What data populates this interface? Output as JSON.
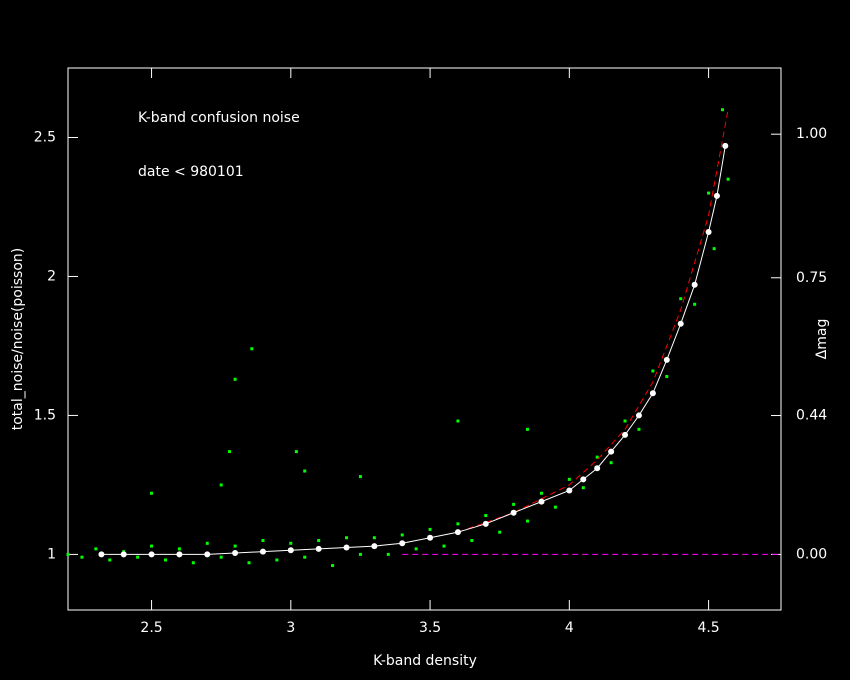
{
  "chart_data": {
    "type": "scatter",
    "title": "K-band confusion noise",
    "annotations": [
      "date < 980101"
    ],
    "x_label": "K-band density",
    "y_label": "total_noise/noise(poisson)",
    "y2_label": "Δmag",
    "xlim": [
      2.2,
      4.76
    ],
    "ylim": [
      0.8,
      2.75
    ],
    "xticks": [
      2.5,
      3,
      3.5,
      4,
      4.5
    ],
    "yticks": [
      1,
      1.5,
      2,
      2.5
    ],
    "y2_scale": "magnitude",
    "y2ticks": [
      {
        "value": 0,
        "label": "0.00"
      },
      {
        "value": 0.44,
        "label": "0.44"
      },
      {
        "value": 0.75,
        "label": "0.75"
      },
      {
        "value": 1,
        "label": "1.00"
      }
    ],
    "series": [
      {
        "mode": "points",
        "color": "#00ff00",
        "x": [
          2.2,
          2.25,
          2.3,
          2.35,
          2.4,
          2.45,
          2.5,
          2.55,
          2.6,
          2.65,
          2.7,
          2.75,
          2.8,
          2.85,
          2.9,
          2.95,
          3.0,
          3.05,
          3.1,
          3.15,
          3.2,
          3.25,
          3.3,
          3.35,
          3.4,
          3.45,
          3.5,
          3.55,
          3.6,
          3.65,
          3.7,
          3.75,
          3.8,
          3.85,
          3.9,
          3.95,
          4.0,
          4.05,
          4.1,
          4.15,
          4.2,
          4.25,
          4.3,
          4.35,
          4.4,
          4.45,
          4.5,
          4.52,
          4.55,
          4.57,
          2.8,
          2.86,
          2.78,
          2.75,
          3.02,
          3.6,
          3.85,
          2.5,
          3.25,
          3.05
        ],
        "values": [
          1.0,
          0.99,
          1.02,
          0.98,
          1.01,
          0.99,
          1.03,
          0.98,
          1.02,
          0.97,
          1.04,
          0.99,
          1.03,
          0.97,
          1.05,
          0.98,
          1.04,
          0.99,
          1.05,
          0.96,
          1.06,
          1.0,
          1.06,
          1.0,
          1.07,
          1.02,
          1.09,
          1.03,
          1.11,
          1.05,
          1.14,
          1.08,
          1.18,
          1.12,
          1.22,
          1.17,
          1.27,
          1.24,
          1.35,
          1.33,
          1.48,
          1.45,
          1.66,
          1.64,
          1.92,
          1.9,
          2.3,
          2.1,
          2.6,
          2.35,
          1.63,
          1.74,
          1.37,
          1.25,
          1.37,
          1.48,
          1.45,
          1.22,
          1.28,
          1.3
        ]
      },
      {
        "mode": "dashed",
        "color": "#ff0000",
        "x": [
          3.6,
          3.8,
          4.0,
          4.1,
          4.2,
          4.3,
          4.4,
          4.5,
          4.57
        ],
        "values": [
          1.08,
          1.15,
          1.25,
          1.34,
          1.45,
          1.62,
          1.88,
          2.22,
          2.6
        ]
      },
      {
        "mode": "dashed",
        "color": "#ff00ff",
        "x": [
          3.4,
          4.76
        ],
        "values": [
          1,
          1
        ]
      },
      {
        "mode": "line+points",
        "color": "#ffffff",
        "x": [
          2.32,
          2.4,
          2.5,
          2.6,
          2.7,
          2.8,
          2.9,
          3.0,
          3.1,
          3.2,
          3.3,
          3.4,
          3.5,
          3.6,
          3.7,
          3.8,
          3.9,
          4.0,
          4.05,
          4.1,
          4.15,
          4.2,
          4.25,
          4.3,
          4.35,
          4.4,
          4.45,
          4.5,
          4.53,
          4.56
        ],
        "values": [
          1.0,
          1.0,
          1.0,
          1.0,
          1.0,
          1.005,
          1.01,
          1.015,
          1.02,
          1.025,
          1.03,
          1.04,
          1.06,
          1.08,
          1.11,
          1.15,
          1.19,
          1.23,
          1.27,
          1.31,
          1.37,
          1.43,
          1.5,
          1.58,
          1.7,
          1.83,
          1.97,
          2.16,
          2.29,
          2.47
        ]
      }
    ]
  }
}
